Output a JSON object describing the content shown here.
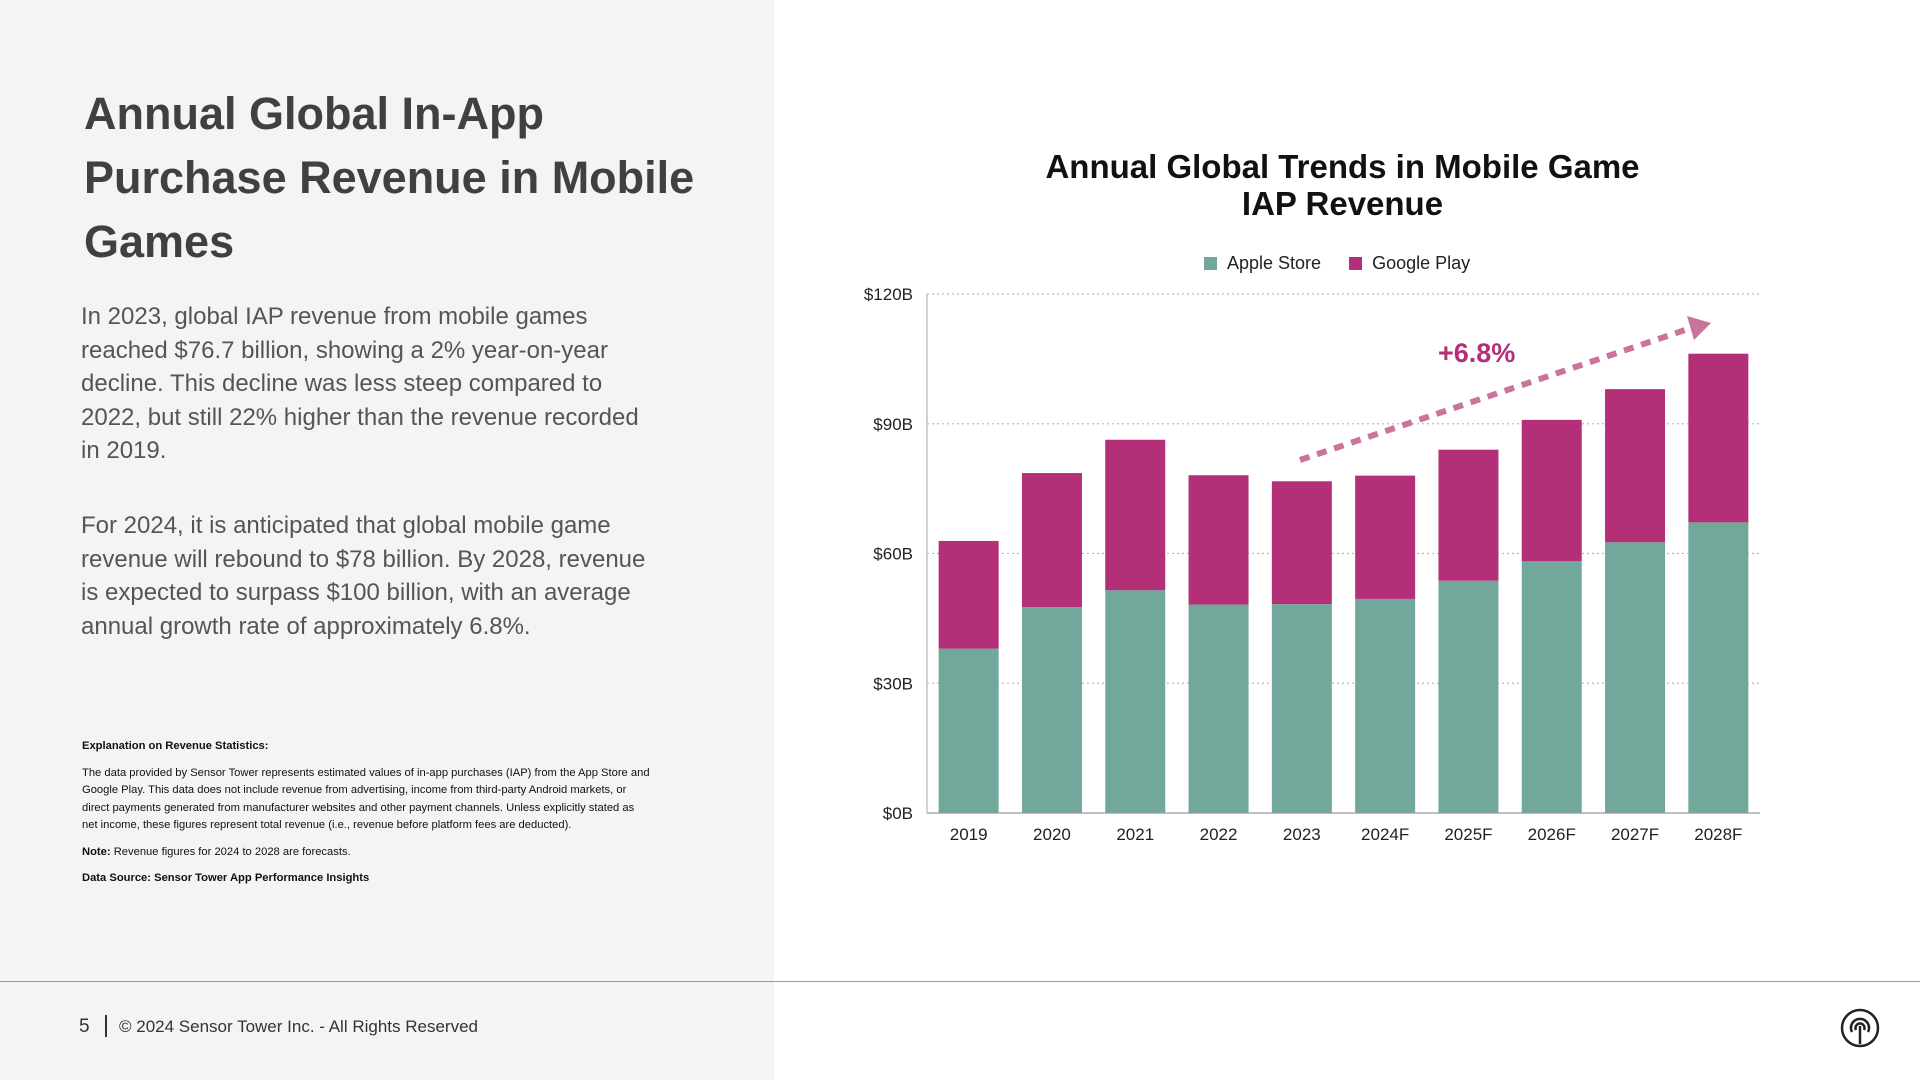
{
  "slide": {
    "title": "Annual Global In-App Purchase Revenue in Mobile Games",
    "paragraph1": "In 2023, global IAP revenue  from mobile games reached $76.7 billion, showing a 2% year-on-year decline. This decline was less steep compared to 2022, but still 22% higher than the revenue recorded in 2019.",
    "paragraph2": "For 2024, it is anticipated that global mobile game revenue will rebound to $78 billion. By 2028, revenue is expected to surpass $100 billion, with an average annual growth rate of approximately 6.8%.",
    "notes": {
      "heading": "Explanation on Revenue Statistics:",
      "body": "The data provided by Sensor Tower represents estimated values of in-app purchases (IAP) from the App Store and Google Play. This data does not include revenue from advertising, income from third-party Android markets, or direct payments generated from manufacturer websites and other payment channels. Unless explicitly stated as net income, these figures represent total revenue (i.e., revenue before platform fees are deducted).",
      "note_label": "Note:",
      "note_text": " Revenue figures for 2024 to 2028 are forecasts.",
      "source": "Data Source: Sensor Tower App Performance Insights"
    },
    "footer": {
      "page": "5",
      "copyright": "© 2024 Sensor Tower Inc. - All Rights Reserved",
      "logo_icon": "sensor-tower-logo-icon"
    }
  },
  "chart_data": {
    "type": "bar",
    "stacked": true,
    "title": "Annual Global Trends in Mobile Game IAP Revenue",
    "title_line1": "Annual Global Trends in Mobile Game",
    "title_line2": "IAP Revenue",
    "categories": [
      "2019",
      "2020",
      "2021",
      "2022",
      "2023",
      "2024F",
      "2025F",
      "2026F",
      "2027F",
      "2028F"
    ],
    "series": [
      {
        "name": "Apple Store",
        "color": "#72a89b",
        "values": [
          38.0,
          47.6,
          51.5,
          48.2,
          48.3,
          49.5,
          53.7,
          58.2,
          62.6,
          67.2
        ]
      },
      {
        "name": "Google Play",
        "color": "#b32f78",
        "values": [
          24.9,
          31.0,
          34.8,
          29.9,
          28.4,
          28.5,
          30.3,
          32.7,
          35.4,
          39.0
        ]
      }
    ],
    "yticks": [
      "$0B",
      "$30B",
      "$60B",
      "$90B",
      "$120B"
    ],
    "ylim": [
      0,
      120
    ],
    "grid": true,
    "legend": "top-center",
    "annotation": {
      "text": "+6.8%",
      "color": "#b32f78",
      "arrow_color": "#c9739d"
    }
  }
}
